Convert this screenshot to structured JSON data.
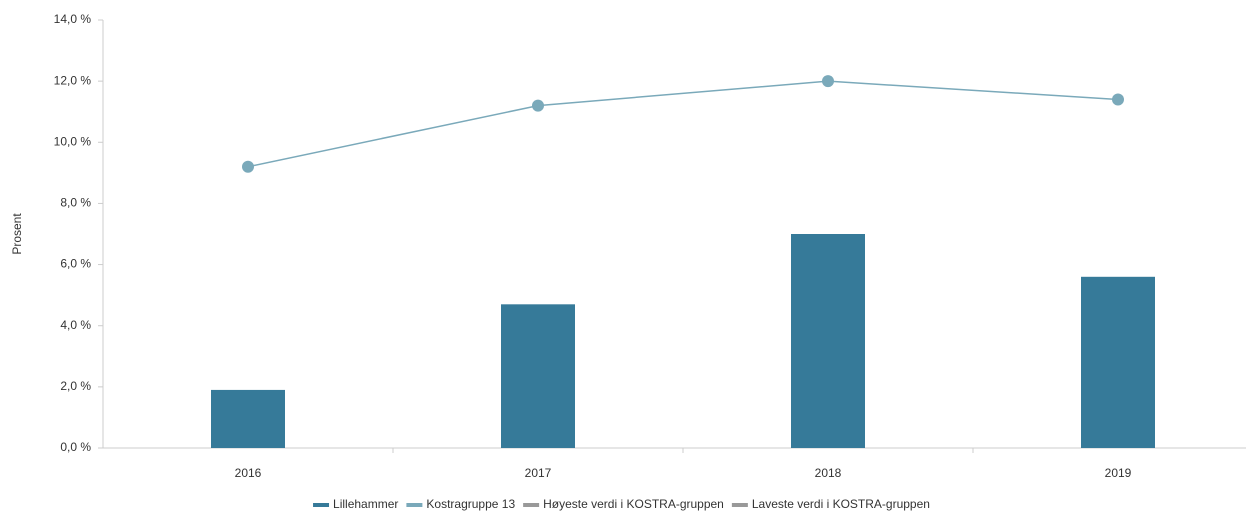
{
  "chart_data": {
    "type": "bar",
    "y_label": "Prosent",
    "categories": [
      "2016",
      "2017",
      "2018",
      "2019"
    ],
    "series": [
      {
        "name": "Lillehammer",
        "type": "bar",
        "color": "#367a99",
        "values": [
          1.9,
          4.7,
          7.0,
          5.6
        ]
      },
      {
        "name": "Kostragruppe 13",
        "type": "line",
        "color": "#7aa9ba",
        "values": [
          9.2,
          11.2,
          12.0,
          11.4
        ]
      },
      {
        "name": "Høyeste verdi i KOSTRA-gruppen",
        "type": "line",
        "color": "#999999",
        "values": [
          null,
          null,
          null,
          null
        ]
      },
      {
        "name": "Laveste verdi i KOSTRA-gruppen",
        "type": "line",
        "color": "#999999",
        "values": [
          null,
          null,
          null,
          null
        ]
      }
    ],
    "ylim": [
      0,
      14
    ],
    "yticks": [
      {
        "value": 0,
        "label": "0,0 %"
      },
      {
        "value": 2,
        "label": "2,0 %"
      },
      {
        "value": 4,
        "label": "4,0 %"
      },
      {
        "value": 6,
        "label": "6,0 %"
      },
      {
        "value": 8,
        "label": "8,0 %"
      },
      {
        "value": 10,
        "label": "10,0 %"
      },
      {
        "value": 12,
        "label": "12,0 %"
      },
      {
        "value": 14,
        "label": "14,0 %"
      }
    ],
    "legend": "bottom"
  }
}
